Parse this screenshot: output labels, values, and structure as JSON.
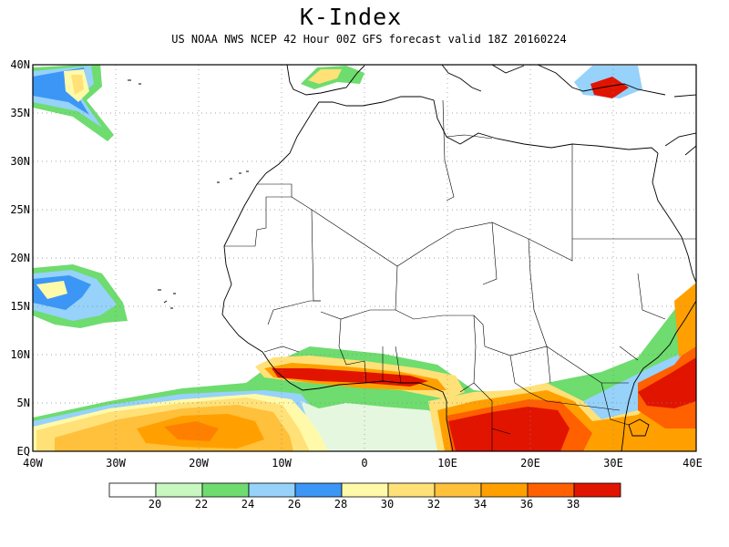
{
  "header": {
    "title": "K-Index",
    "subtitle": "US NOAA NWS NCEP 42 Hour 00Z GFS forecast valid 18Z 20160224"
  },
  "axes": {
    "lat_labels": [
      "40N",
      "35N",
      "30N",
      "25N",
      "20N",
      "15N",
      "10N",
      "5N",
      "EQ"
    ],
    "lon_labels": [
      "40W",
      "30W",
      "20W",
      "10W",
      "0",
      "10E",
      "20E",
      "30E",
      "40E"
    ]
  },
  "colorbar": {
    "labels": [
      "20",
      "22",
      "24",
      "26",
      "28",
      "30",
      "32",
      "34",
      "36",
      "38"
    ],
    "colors": [
      "#ffffff",
      "#c8f7c0",
      "#6edc6e",
      "#96d2fa",
      "#3c96f5",
      "#fffaaa",
      "#ffe178",
      "#ffc03c",
      "#ffa000",
      "#ff6000",
      "#e11400"
    ]
  }
}
